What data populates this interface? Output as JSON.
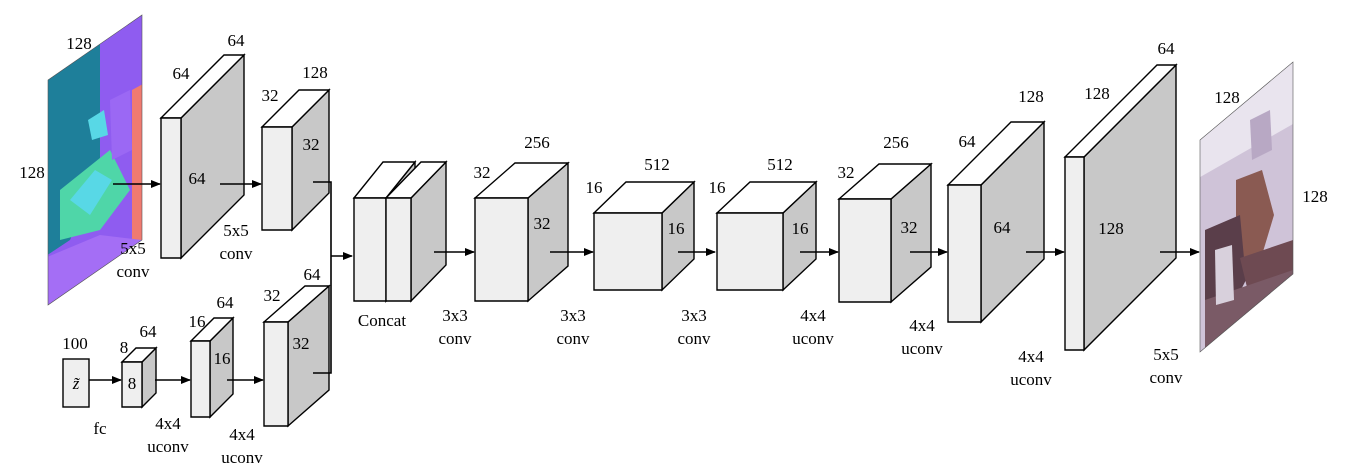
{
  "input_image": {
    "dim_top": "128",
    "dim_left": "128",
    "colors": {
      "teal": "#1e7f9a",
      "purple": "#8f5cf0",
      "cyan": "#58d8e6",
      "green": "#4fd6a8",
      "salmon": "#f07a70",
      "lavender": "#a46ef5"
    }
  },
  "output_image": {
    "dim_top": "128",
    "dim_right": "128",
    "colors": {
      "wall": "#cfc3d8",
      "wood": "#8a5a52",
      "shadow": "#5a3e4a",
      "light": "#e9e4ee"
    }
  },
  "z_block": {
    "symbol": "z̃",
    "dim_top": "100",
    "op": "fc"
  },
  "blocks": [
    {
      "id": "e1",
      "dims": [
        "64",
        "64",
        "64"
      ],
      "op": [
        "5x5",
        "conv"
      ]
    },
    {
      "id": "e2",
      "dims": [
        "32",
        "128",
        "32"
      ],
      "op": [
        "5x5",
        "conv"
      ]
    },
    {
      "id": "z1",
      "dims": [
        "8",
        "64",
        "8"
      ],
      "op": [
        "4x4",
        "uconv"
      ]
    },
    {
      "id": "z2",
      "dims": [
        "16",
        "64",
        "16"
      ],
      "op": [
        "4x4",
        "uconv"
      ]
    },
    {
      "id": "z3",
      "dims": [
        "32",
        "64",
        "32"
      ]
    },
    {
      "id": "concat",
      "label": "Concat",
      "op": [
        "3x3",
        "conv"
      ]
    },
    {
      "id": "c1",
      "dims": [
        "32",
        "256",
        "32"
      ],
      "op": [
        "3x3",
        "conv"
      ]
    },
    {
      "id": "c2",
      "dims": [
        "16",
        "512",
        "16"
      ],
      "op": [
        "3x3",
        "conv"
      ]
    },
    {
      "id": "c3",
      "dims": [
        "16",
        "512",
        "16"
      ],
      "op": [
        "4x4",
        "uconv"
      ]
    },
    {
      "id": "c4",
      "dims": [
        "32",
        "256",
        "32"
      ],
      "op": [
        "4x4",
        "uconv"
      ]
    },
    {
      "id": "d1",
      "dims": [
        "64",
        "128",
        "64"
      ],
      "op": [
        "4x4",
        "uconv"
      ]
    },
    {
      "id": "d2",
      "dims": [
        "128",
        "64",
        "128"
      ],
      "op": [
        "5x5",
        "conv"
      ]
    }
  ]
}
